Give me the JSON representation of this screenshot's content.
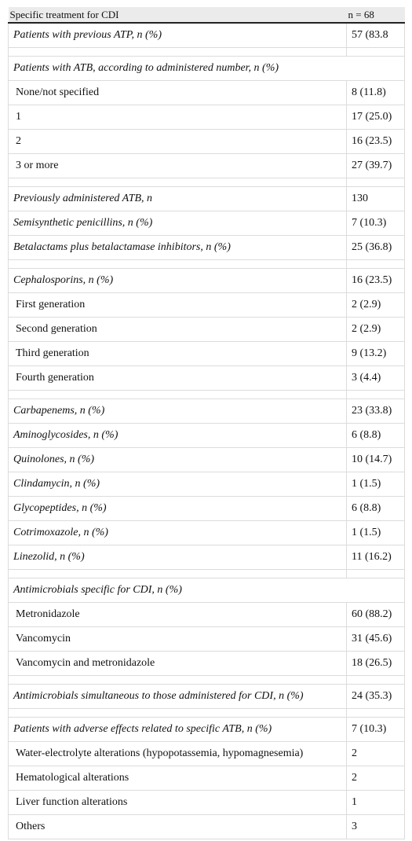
{
  "table": {
    "header": [
      "Specific treatment for CDI",
      "n = 68"
    ],
    "groups": [
      [
        {
          "label": "Patients with previous ATP, n (%)",
          "value": "57 (83.8",
          "italic": true
        }
      ],
      [
        {
          "label": "Patients with ATB, according to administered number, n (%)",
          "italic": true
        },
        {
          "label": "None/not specified",
          "value": "8 (11.8)"
        },
        {
          "label": "1",
          "value": "17 (25.0)"
        },
        {
          "label": "2",
          "value": "16 (23.5)"
        },
        {
          "label": "3 or more",
          "value": "27 (39.7)"
        }
      ],
      [
        {
          "label": "Previously administered ATB, n",
          "value": "130",
          "italic": true
        },
        {
          "label": "Semisynthetic penicillins, n (%)",
          "value": "7 (10.3)",
          "italic": true
        },
        {
          "label": "Betalactams plus betalactamase inhibitors, n (%)",
          "value": "25 (36.8)",
          "italic": true
        }
      ],
      [
        {
          "label": "Cephalosporins, n (%)",
          "value": "16 (23.5)",
          "italic": true
        },
        {
          "label": "First generation",
          "value": "2 (2.9)"
        },
        {
          "label": "Second generation",
          "value": "2 (2.9)"
        },
        {
          "label": "Third generation",
          "value": "9 (13.2)"
        },
        {
          "label": "Fourth generation",
          "value": "3 (4.4)"
        }
      ],
      [
        {
          "label": "Carbapenems, n (%)",
          "value": "23 (33.8)",
          "italic": true
        },
        {
          "label": "Aminoglycosides, n (%)",
          "value": "6 (8.8)",
          "italic": true
        },
        {
          "label": "Quinolones, n (%)",
          "value": "10 (14.7)",
          "italic": true
        },
        {
          "label": "Clindamycin, n (%)",
          "value": "1 (1.5)",
          "italic": true
        },
        {
          "label": "Glycopeptides, n (%)",
          "value": "6 (8.8)",
          "italic": true
        },
        {
          "label": "Cotrimoxazole, n (%)",
          "value": "1 (1.5)",
          "italic": true
        },
        {
          "label": "Linezolid, n (%)",
          "value": "11 (16.2)",
          "italic": true
        }
      ],
      [
        {
          "label": "Antimicrobials specific for CDI, n (%)",
          "italic": true
        },
        {
          "label": "Metronidazole",
          "value": "60 (88.2)"
        },
        {
          "label": "Vancomycin",
          "value": "31 (45.6)"
        },
        {
          "label": "Vancomycin and metronidazole",
          "value": "18 (26.5)"
        }
      ],
      [
        {
          "label": "Antimicrobials simultaneous to those administered for CDI, n (%)",
          "value": "24 (35.3)",
          "italic": true
        }
      ],
      [
        {
          "label": "Patients with adverse effects related to specific ATB, n (%)",
          "value": "7 (10.3)",
          "italic": true
        },
        {
          "label": "Water-electrolyte alterations (hypopotassemia, hypomagnesemia)",
          "value": "2"
        },
        {
          "label": "Hematological alterations",
          "value": "2"
        },
        {
          "label": "Liver function alterations",
          "value": "1"
        },
        {
          "label": "Others",
          "value": "3"
        }
      ]
    ]
  }
}
